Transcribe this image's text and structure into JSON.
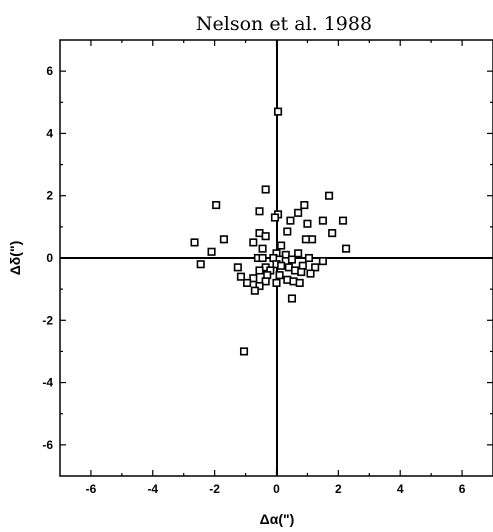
{
  "chart_data": {
    "type": "scatter",
    "title": "Nelson et al. 1988",
    "xlabel": "Δα(\")",
    "ylabel": "Δδ(\")",
    "xlim": [
      -7,
      7
    ],
    "ylim": [
      -7,
      7
    ],
    "xticks": [
      -6,
      -4,
      -2,
      0,
      2,
      4,
      6
    ],
    "yticks": [
      -6,
      -4,
      -2,
      0,
      2,
      4,
      6
    ],
    "xtick_labels": [
      "-6",
      "-4",
      "-2",
      "0",
      "2",
      "4",
      "6"
    ],
    "ytick_labels": [
      "-6",
      "-4",
      "-2",
      "0",
      "2",
      "4",
      "6"
    ],
    "grid": false,
    "zero_lines": true,
    "marker": "open-square",
    "series": [
      {
        "points": [
          [
            0.05,
            4.7
          ],
          [
            -0.35,
            2.2
          ],
          [
            -1.95,
            1.7
          ],
          [
            1.7,
            2.0
          ],
          [
            0.9,
            1.7
          ],
          [
            0.7,
            1.45
          ],
          [
            -0.55,
            1.5
          ],
          [
            0.05,
            1.4
          ],
          [
            -0.05,
            1.3
          ],
          [
            0.45,
            1.2
          ],
          [
            1.5,
            1.2
          ],
          [
            2.15,
            1.2
          ],
          [
            1.0,
            1.1
          ],
          [
            0.35,
            0.85
          ],
          [
            1.8,
            0.8
          ],
          [
            -0.55,
            0.8
          ],
          [
            -0.35,
            0.7
          ],
          [
            1.15,
            0.6
          ],
          [
            0.95,
            0.6
          ],
          [
            -1.7,
            0.6
          ],
          [
            -0.75,
            0.5
          ],
          [
            -2.65,
            0.5
          ],
          [
            -0.45,
            0.3
          ],
          [
            0.15,
            0.4
          ],
          [
            2.25,
            0.3
          ],
          [
            -2.1,
            0.2
          ],
          [
            0.0,
            0.15
          ],
          [
            0.3,
            0.1
          ],
          [
            0.7,
            0.15
          ],
          [
            1.05,
            0.0
          ],
          [
            1.5,
            -0.1
          ],
          [
            -0.6,
            0.0
          ],
          [
            -0.45,
            0.0
          ],
          [
            -0.1,
            0.0
          ],
          [
            0.1,
            -0.05
          ],
          [
            0.3,
            -0.1
          ],
          [
            0.5,
            -0.05
          ],
          [
            -2.45,
            -0.2
          ],
          [
            -1.25,
            -0.3
          ],
          [
            -0.35,
            -0.3
          ],
          [
            0.0,
            -0.2
          ],
          [
            0.15,
            -0.25
          ],
          [
            0.4,
            -0.3
          ],
          [
            0.85,
            -0.25
          ],
          [
            1.25,
            -0.3
          ],
          [
            -0.55,
            -0.4
          ],
          [
            -0.2,
            -0.4
          ],
          [
            0.6,
            -0.4
          ],
          [
            0.8,
            -0.45
          ],
          [
            -0.3,
            -0.55
          ],
          [
            0.1,
            -0.55
          ],
          [
            1.1,
            -0.5
          ],
          [
            -1.15,
            -0.6
          ],
          [
            -0.75,
            -0.65
          ],
          [
            -0.95,
            -0.8
          ],
          [
            -0.35,
            -0.75
          ],
          [
            0.35,
            -0.7
          ],
          [
            0.55,
            -0.75
          ],
          [
            0.75,
            -0.8
          ],
          [
            0.0,
            -0.8
          ],
          [
            -0.55,
            -0.9
          ],
          [
            -0.7,
            -1.05
          ],
          [
            0.5,
            -1.3
          ],
          [
            -1.05,
            -3.0
          ]
        ]
      }
    ]
  }
}
